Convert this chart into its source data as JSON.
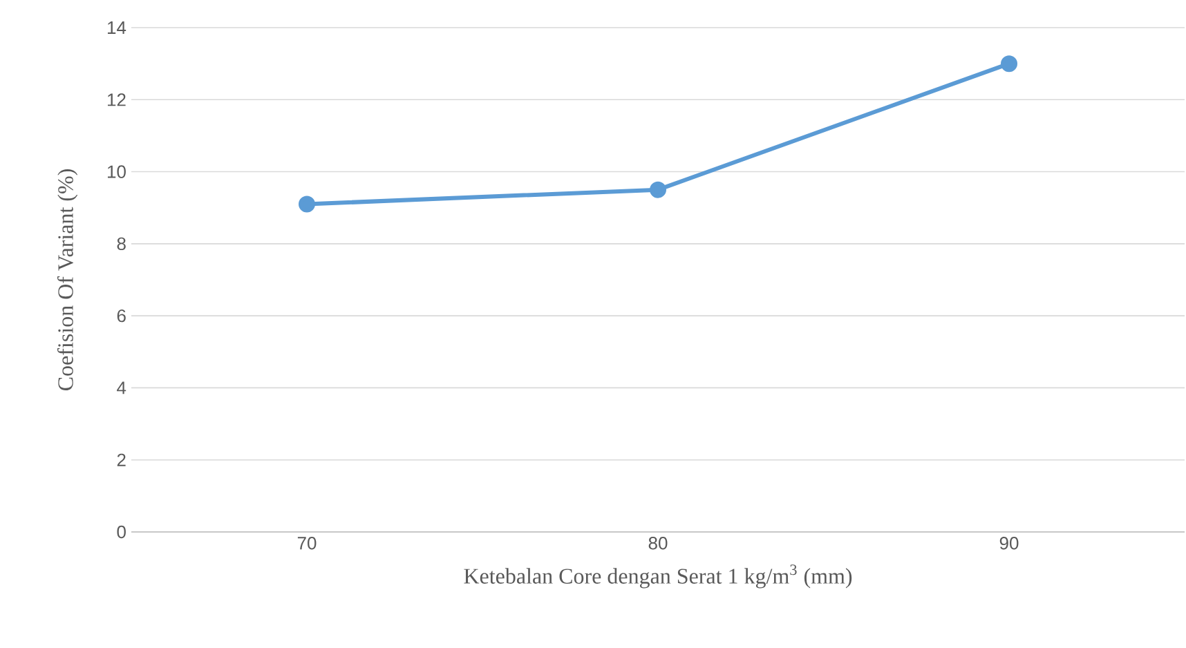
{
  "chart_data": {
    "type": "line",
    "xlabel": "Ketebalan Core dengan Serat 1 kg/m$^{3}$ (mm)",
    "ylabel": "Coefision Of Variant (%)",
    "categories": [
      "70",
      "80",
      "90"
    ],
    "series": [
      {
        "color": "#5b9bd5",
        "values": [
          9.1,
          9.5,
          13.0
        ]
      }
    ],
    "ylim": [
      0,
      14
    ],
    "yticks": [
      0,
      2,
      4,
      6,
      8,
      10,
      12,
      14
    ],
    "grid": "y",
    "marker": "circle",
    "line_style": "solid"
  }
}
